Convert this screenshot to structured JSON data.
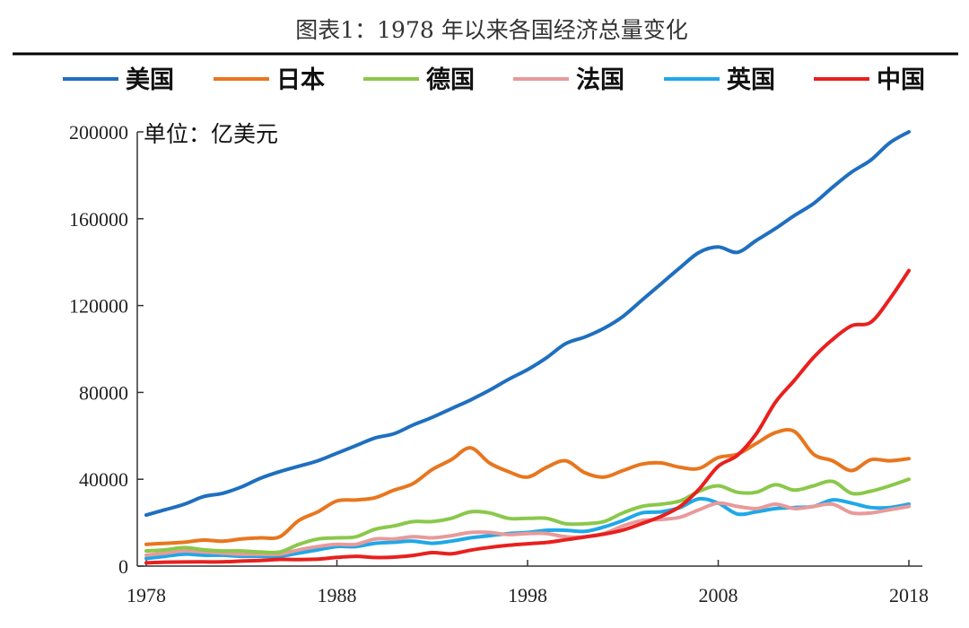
{
  "chart_data": {
    "type": "line",
    "title": "图表1：1978 年以来各国经济总量变化",
    "unit_label": "单位：亿美元",
    "legend_position": "top",
    "grid": false,
    "xlim": [
      1978,
      2018
    ],
    "ylim": [
      0,
      200000
    ],
    "x_ticks": [
      1978,
      1988,
      1998,
      2008,
      2018
    ],
    "y_ticks": [
      0,
      40000,
      80000,
      120000,
      160000,
      200000
    ],
    "x": [
      1978,
      1979,
      1980,
      1981,
      1982,
      1983,
      1984,
      1985,
      1986,
      1987,
      1988,
      1989,
      1990,
      1991,
      1992,
      1993,
      1994,
      1995,
      1996,
      1997,
      1998,
      1999,
      2000,
      2001,
      2002,
      2003,
      2004,
      2005,
      2006,
      2007,
      2008,
      2009,
      2010,
      2011,
      2012,
      2013,
      2014,
      2015,
      2016,
      2017,
      2018
    ],
    "series": [
      {
        "name": "美国",
        "color": "#1f6fbf",
        "values": [
          23500,
          26000,
          28500,
          32000,
          33500,
          36500,
          40500,
          43500,
          46000,
          48500,
          52000,
          55500,
          59000,
          61000,
          65000,
          68500,
          72500,
          76500,
          81000,
          86000,
          90500,
          96000,
          102500,
          105500,
          109500,
          115000,
          122500,
          130000,
          137500,
          144500,
          147000,
          144500,
          150000,
          155500,
          161500,
          167000,
          174500,
          181500,
          187000,
          195000,
          205000
        ]
      },
      {
        "name": "日本",
        "color": "#e8761e",
        "values": [
          10000,
          10500,
          11000,
          12000,
          11500,
          12500,
          13000,
          13500,
          21000,
          25000,
          30000,
          30500,
          31500,
          35000,
          38000,
          44500,
          49000,
          54500,
          47500,
          43500,
          41000,
          45500,
          48500,
          43000,
          41000,
          44000,
          47000,
          47500,
          45500,
          45000,
          50000,
          51500,
          56500,
          61500,
          62000,
          51500,
          48500,
          44000,
          49000,
          48500,
          49500
        ]
      },
      {
        "name": "德国",
        "color": "#8ac84a",
        "values": [
          7000,
          7500,
          8500,
          7500,
          7000,
          7000,
          6500,
          6500,
          10000,
          12500,
          13000,
          13500,
          17000,
          18500,
          20500,
          20500,
          22000,
          25000,
          24500,
          22000,
          22000,
          22000,
          19500,
          19500,
          20500,
          24500,
          27500,
          28500,
          30000,
          34500,
          37000,
          34000,
          34000,
          37500,
          35000,
          37000,
          39000,
          33500,
          34500,
          37000,
          40000
        ]
      },
      {
        "name": "法国",
        "color": "#e89a9a",
        "values": [
          5000,
          6000,
          7000,
          6500,
          6000,
          5500,
          5500,
          5500,
          7500,
          9000,
          10000,
          10000,
          12500,
          12500,
          13500,
          13000,
          14000,
          15500,
          15500,
          14500,
          15000,
          15000,
          13500,
          13500,
          15000,
          18500,
          21000,
          21500,
          22500,
          26000,
          29000,
          27500,
          26500,
          28500,
          26500,
          27500,
          28500,
          24500,
          24500,
          26000,
          27500
        ]
      },
      {
        "name": "英国",
        "color": "#1fa8e8",
        "values": [
          3500,
          4500,
          5500,
          5000,
          5000,
          4500,
          4500,
          4500,
          6000,
          7500,
          9000,
          9000,
          10500,
          11000,
          11500,
          10500,
          11500,
          13000,
          14000,
          15000,
          15500,
          16500,
          16500,
          16000,
          18000,
          21000,
          24500,
          25000,
          27000,
          31000,
          29000,
          24000,
          25000,
          26500,
          27000,
          27500,
          30500,
          29000,
          27000,
          27000,
          28500
        ]
      },
      {
        "name": "中国",
        "color": "#e8201e",
        "values": [
          1500,
          1800,
          1900,
          1950,
          1950,
          2300,
          2600,
          3100,
          3000,
          3200,
          4000,
          4500,
          3950,
          4150,
          4900,
          6200,
          5650,
          7300,
          8600,
          9600,
          10300,
          10900,
          12100,
          13400,
          14700,
          16600,
          19600,
          22900,
          27500,
          35500,
          46000,
          51000,
          61000,
          75500,
          85600,
          96100,
          104400,
          110700,
          112300,
          123100,
          136100
        ]
      }
    ]
  }
}
